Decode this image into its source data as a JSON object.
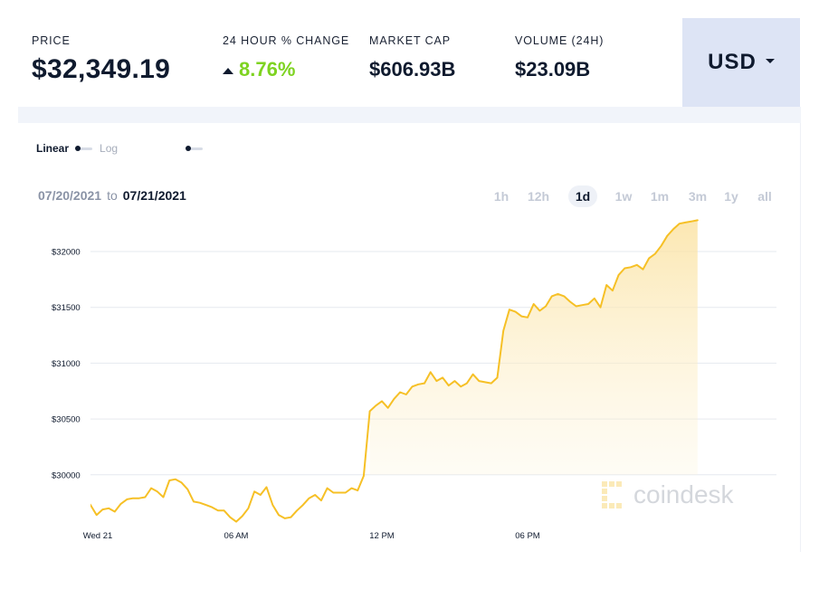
{
  "stats": {
    "price_label": "PRICE",
    "price_value": "$32,349.19",
    "change_label": "24 HOUR % CHANGE",
    "change_value": "8.76%",
    "change_color": "#7ed321",
    "mcap_label": "MARKET CAP",
    "mcap_value": "$606.93B",
    "volume_label": "VOLUME (24H)",
    "volume_value": "$23.09B"
  },
  "currency": {
    "selected": "USD",
    "icon": "caret-down-icon"
  },
  "scale": {
    "linear": "Linear",
    "log": "Log"
  },
  "daterange": {
    "from": "07/20/2021",
    "sep": "to",
    "to": "07/21/2021"
  },
  "ranges": [
    {
      "label": "1h",
      "active": false
    },
    {
      "label": "12h",
      "active": false
    },
    {
      "label": "1d",
      "active": true
    },
    {
      "label": "1w",
      "active": false
    },
    {
      "label": "1m",
      "active": false
    },
    {
      "label": "3m",
      "active": false
    },
    {
      "label": "1y",
      "active": false
    },
    {
      "label": "all",
      "active": false
    }
  ],
  "watermark": {
    "text": "coindesk",
    "icon": "coindesk-logo-icon"
  },
  "chart_data": {
    "type": "area",
    "x_range_hours": [
      0,
      24
    ],
    "xticks": [
      {
        "label": "Wed 21",
        "x": 0
      },
      {
        "label": "06 AM",
        "x": 6
      },
      {
        "label": "12 PM",
        "x": 12
      },
      {
        "label": "06 PM",
        "x": 18
      }
    ],
    "ylim": [
      29600,
      32100
    ],
    "yticks": [
      {
        "label": "$30000",
        "value": 30000
      },
      {
        "label": "$30500",
        "value": 30500
      },
      {
        "label": "$31000",
        "value": 31000
      },
      {
        "label": "$31500",
        "value": 31500
      },
      {
        "label": "$32000",
        "value": 32000
      }
    ],
    "grid": true,
    "line_color": "#f6c026",
    "fill_color": "#fbe3a4",
    "series": [
      {
        "x": [
          -0.25,
          0.0,
          0.25,
          0.5,
          0.75,
          1.0,
          1.25,
          1.5,
          1.75,
          2.0,
          2.25,
          2.5,
          2.75,
          3.0,
          3.25,
          3.5,
          3.75,
          4.0,
          4.25,
          4.5,
          4.75,
          5.0,
          5.25,
          5.5,
          5.75,
          6.0,
          6.25,
          6.5,
          6.75,
          7.0,
          7.25,
          7.5,
          7.75,
          8.0,
          8.25,
          8.5,
          8.75,
          9.0,
          9.25,
          9.5,
          9.75,
          10.0,
          10.25,
          10.5,
          10.75,
          11.0,
          11.25,
          11.5,
          11.75,
          12.0,
          12.25,
          12.5,
          12.75,
          13.0,
          13.25,
          13.5,
          13.75,
          14.0,
          14.25,
          14.5,
          14.75,
          15.0,
          15.25,
          15.5,
          15.75,
          16.0,
          16.25,
          16.5,
          16.75,
          17.0,
          17.25,
          17.5,
          17.75,
          18.0,
          18.25,
          18.5,
          18.75,
          19.0,
          19.25,
          19.5,
          19.75,
          20.0,
          20.25,
          20.5,
          20.75,
          21.0,
          21.25,
          21.5,
          21.75,
          22.0,
          22.25,
          22.5,
          22.75,
          23.0,
          23.25,
          23.5,
          23.75,
          24.0,
          24.25,
          24.5,
          24.75,
          25.0
        ],
        "values": [
          29800,
          29730,
          29640,
          29690,
          29700,
          29670,
          29740,
          29780,
          29790,
          29790,
          29800,
          29880,
          29850,
          29800,
          29950,
          29960,
          29930,
          29870,
          29760,
          29750,
          29730,
          29710,
          29680,
          29680,
          29620,
          29580,
          29630,
          29700,
          29850,
          29820,
          29890,
          29730,
          29640,
          29610,
          29620,
          29680,
          29730,
          29790,
          29820,
          29770,
          29880,
          29840,
          29840,
          29840,
          29880,
          29860,
          29990,
          30570,
          30620,
          30660,
          30600,
          30680,
          30740,
          30720,
          30790,
          30810,
          30820,
          30920,
          30840,
          30870,
          30800,
          30840,
          30790,
          30820,
          30900,
          30840,
          30830,
          30820,
          30870,
          31290,
          31480,
          31460,
          31420,
          31410,
          31530,
          31470,
          31510,
          31600,
          31620,
          31600,
          31550,
          31510,
          31520,
          31530,
          31580,
          31500,
          31700,
          31650,
          31790,
          31850,
          31860,
          31880,
          31840,
          31940,
          31980,
          32050,
          32140,
          32200,
          32250,
          32260,
          32270,
          32280
        ]
      }
    ]
  }
}
